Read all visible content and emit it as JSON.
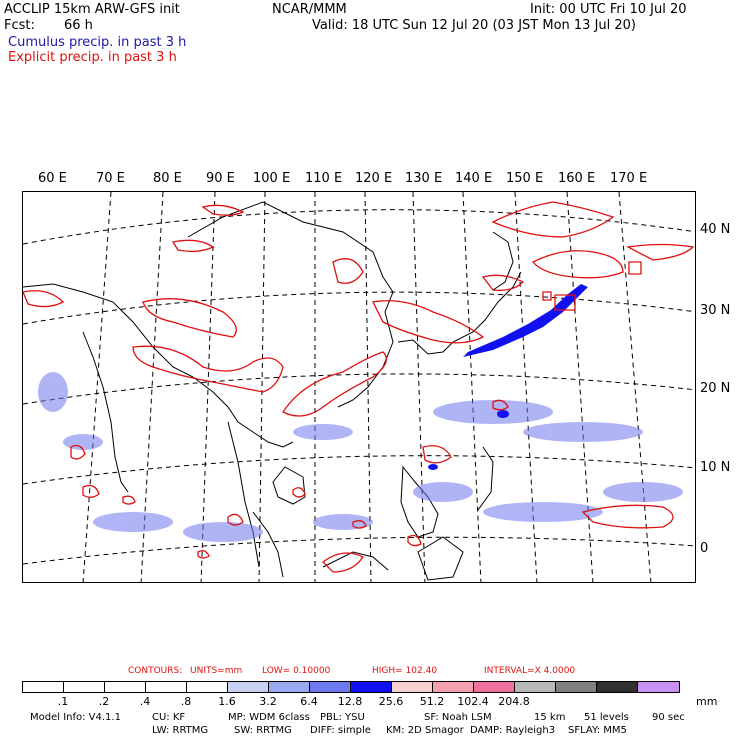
{
  "header": {
    "model_title": "ACCLIP 15km ARW-GFS init",
    "fcst_label": "Fcst:",
    "fcst_value": "66 h",
    "center": "NCAR/MMM",
    "init": "Init: 00 UTC Fri 10 Jul 20",
    "valid": "Valid: 18 UTC Sun 12 Jul 20 (03 JST Mon 13 Jul 20)",
    "legend_cumulus": "Cumulus precip. in past 3 h",
    "legend_explicit": "Explicit precip. in past 3 h"
  },
  "map": {
    "lon_labels": [
      "60 E",
      "70 E",
      "80 E",
      "90 E",
      "100 E",
      "110 E",
      "120 E",
      "130 E",
      "140 E",
      "150 E",
      "160 E",
      "170 E"
    ],
    "lat_labels": [
      "40 N",
      "30 N",
      "20 N",
      "10 N",
      "0"
    ]
  },
  "contours": {
    "label": "CONTOURS:",
    "units": "UNITS=mm",
    "low": "LOW= 0.10000",
    "high": "HIGH= 102.40",
    "interval": "INTERVAL=X 4.0000"
  },
  "colorbar": {
    "colors": [
      "#ffffff",
      "#ffffff",
      "#ffffff",
      "#ffffff",
      "#ffffff",
      "#c8d2f0",
      "#9aa8f0",
      "#6e78ee",
      "#1010f0",
      "#f8d0d0",
      "#f4a0b0",
      "#f070a0",
      "#b8b8b8",
      "#808080",
      "#303030",
      "#c890f0"
    ],
    "ticks": [
      ".1",
      ".2",
      ".4",
      ".8",
      "1.6",
      "3.2",
      "6.4",
      "12.8",
      "25.6",
      "51.2",
      "102.4",
      "204.8"
    ],
    "unit": "mm"
  },
  "model_info": {
    "line1": [
      "Model Info: V4.1.1",
      "CU: KF",
      "MP: WDM 6class",
      "PBL: YSU",
      "SF: Noah LSM",
      "15 km",
      "51 levels",
      "90 sec"
    ],
    "line2": [
      "LW: RRTMG",
      "SW: RRTMG",
      "DIFF: simple",
      "KM: 2D Smagor",
      "DAMP: Rayleigh3",
      "SFLAY: MM5"
    ]
  },
  "colors": {
    "explicit": "#e01010",
    "cumulus": "#2030e0"
  }
}
